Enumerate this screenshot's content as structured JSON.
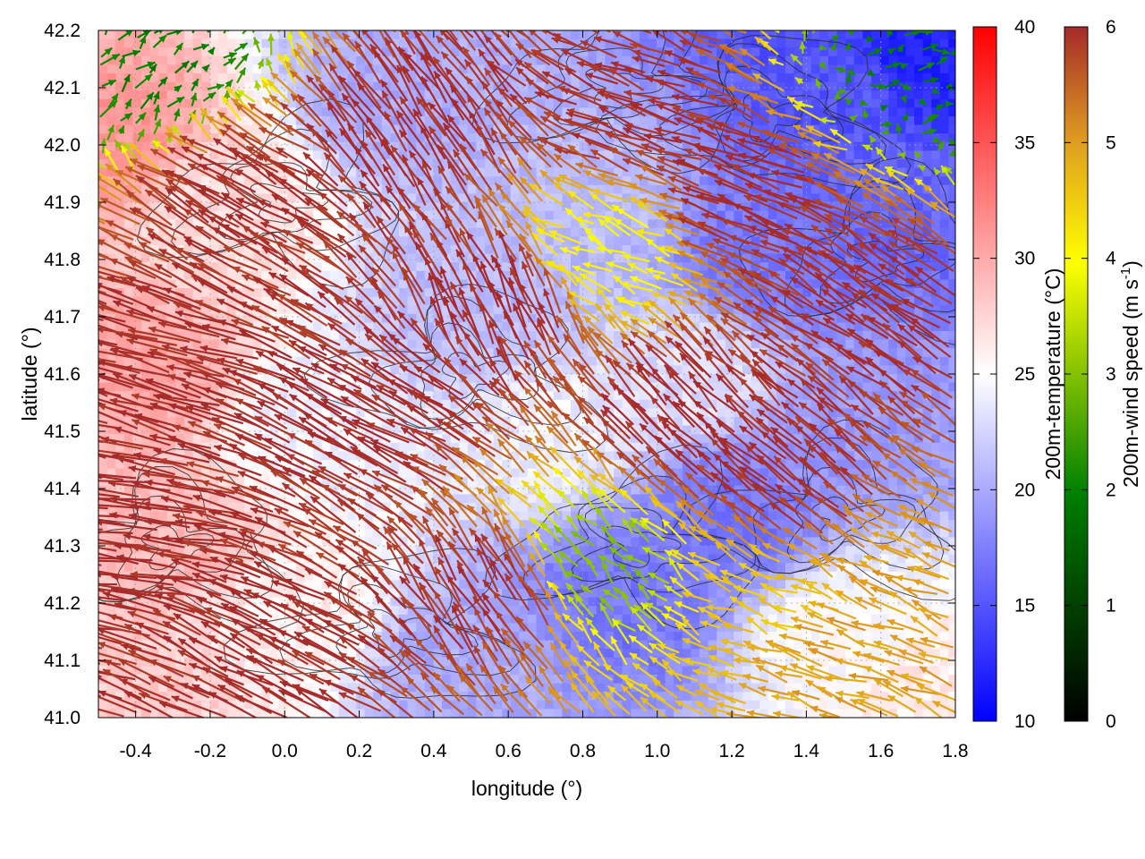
{
  "chart_data": {
    "type": "heatmap",
    "title": "",
    "xlabel": "longitude (°)",
    "ylabel": "latitude (°)",
    "xlim": [
      -0.5,
      1.8
    ],
    "ylim": [
      41.0,
      42.2
    ],
    "x_ticks": [
      "-0.4",
      "-0.2",
      "0.0",
      "0.2",
      "0.4",
      "0.6",
      "0.8",
      "1.0",
      "1.2",
      "1.4",
      "1.6",
      "1.8"
    ],
    "y_ticks": [
      "41.0",
      "41.1",
      "41.2",
      "41.3",
      "41.4",
      "41.5",
      "41.6",
      "41.7",
      "41.8",
      "41.9",
      "42.0",
      "42.1",
      "42.2"
    ],
    "grid": true,
    "overlays": [
      "200m wind vectors (arrows colored by wind speed)",
      "terrain contour lines"
    ],
    "colorbars": [
      {
        "label": "200m-temperature (°C)",
        "range": [
          10,
          40
        ],
        "ticks": [
          "10",
          "15",
          "20",
          "25",
          "30",
          "35",
          "40"
        ],
        "colors": [
          "#0000ff",
          "#ffffff",
          "#ff0000"
        ]
      },
      {
        "label_main": "200m-wind speed (m s",
        "label_sup": "-1",
        "label_end": ")",
        "range": [
          0,
          6
        ],
        "ticks": [
          "0",
          "1",
          "2",
          "3",
          "4",
          "5",
          "6"
        ],
        "colors": [
          "#000000",
          "#008000",
          "#ffff00",
          "#e0a020",
          "#a52a2a"
        ]
      }
    ],
    "temperature_regions": [
      {
        "lon": -0.45,
        "lat": 41.05,
        "temp": 28
      },
      {
        "lon": -0.3,
        "lat": 41.3,
        "temp": 29
      },
      {
        "lon": -0.4,
        "lat": 41.6,
        "temp": 30
      },
      {
        "lon": -0.45,
        "lat": 42.0,
        "temp": 31
      },
      {
        "lon": -0.2,
        "lat": 41.9,
        "temp": 27
      },
      {
        "lon": 0.0,
        "lat": 41.2,
        "temp": 26
      },
      {
        "lon": 0.1,
        "lat": 41.5,
        "temp": 24
      },
      {
        "lon": 0.3,
        "lat": 42.1,
        "temp": 20
      },
      {
        "lon": 0.5,
        "lat": 41.7,
        "temp": 21
      },
      {
        "lon": 0.5,
        "lat": 41.1,
        "temp": 20
      },
      {
        "lon": 0.7,
        "lat": 41.5,
        "temp": 24
      },
      {
        "lon": 0.8,
        "lat": 41.9,
        "temp": 21
      },
      {
        "lon": 0.9,
        "lat": 41.2,
        "temp": 17
      },
      {
        "lon": 1.1,
        "lat": 41.6,
        "temp": 23
      },
      {
        "lon": 1.2,
        "lat": 41.35,
        "temp": 17
      },
      {
        "lon": 1.3,
        "lat": 41.8,
        "temp": 17
      },
      {
        "lon": 1.5,
        "lat": 41.5,
        "temp": 19
      },
      {
        "lon": 1.6,
        "lat": 41.9,
        "temp": 16
      },
      {
        "lon": 1.7,
        "lat": 42.15,
        "temp": 12
      },
      {
        "lon": 1.5,
        "lat": 42.1,
        "temp": 15
      },
      {
        "lon": 1.5,
        "lat": 41.15,
        "temp": 25
      },
      {
        "lon": 1.75,
        "lat": 41.05,
        "temp": 26
      }
    ],
    "wind_regions": [
      {
        "lon": -0.4,
        "lat": 41.3,
        "u": -6.5,
        "v": 0.8,
        "speed": 6
      },
      {
        "lon": -0.3,
        "lat": 41.6,
        "u": -6.0,
        "v": 1.8,
        "speed": 6
      },
      {
        "lon": -0.1,
        "lat": 41.9,
        "u": -5.0,
        "v": 2.8,
        "speed": 6
      },
      {
        "lon": -0.35,
        "lat": 42.12,
        "u": 1.2,
        "v": 1.0,
        "speed": 2
      },
      {
        "lon": 0.0,
        "lat": 41.1,
        "u": -5.0,
        "v": 2.5,
        "speed": 6
      },
      {
        "lon": 0.3,
        "lat": 41.5,
        "u": -5.5,
        "v": 3.0,
        "speed": 6
      },
      {
        "lon": 0.4,
        "lat": 42.0,
        "u": -3.0,
        "v": 4.5,
        "speed": 6
      },
      {
        "lon": 0.6,
        "lat": 41.7,
        "u": -2.0,
        "v": 4.5,
        "speed": 6
      },
      {
        "lon": 0.6,
        "lat": 41.2,
        "u": -2.5,
        "v": 4.0,
        "speed": 6
      },
      {
        "lon": 0.85,
        "lat": 41.25,
        "u": -1.5,
        "v": 1.5,
        "speed": 3
      },
      {
        "lon": 0.9,
        "lat": 41.8,
        "u": -2.5,
        "v": 1.2,
        "speed": 4
      },
      {
        "lon": 1.0,
        "lat": 42.05,
        "u": -4.0,
        "v": 1.5,
        "speed": 6
      },
      {
        "lon": 1.1,
        "lat": 41.5,
        "u": -3.5,
        "v": 3.5,
        "speed": 6
      },
      {
        "lon": 1.3,
        "lat": 41.9,
        "u": -5.0,
        "v": 2.0,
        "speed": 6
      },
      {
        "lon": 1.4,
        "lat": 41.4,
        "u": -4.0,
        "v": 3.5,
        "speed": 6
      },
      {
        "lon": 1.6,
        "lat": 41.7,
        "u": -4.5,
        "v": 3.0,
        "speed": 6
      },
      {
        "lon": 1.5,
        "lat": 41.12,
        "u": -3.5,
        "v": 1.2,
        "speed": 5
      },
      {
        "lon": 1.35,
        "lat": 41.2,
        "u": -2.5,
        "v": 1.0,
        "speed": 4.6
      },
      {
        "lon": 1.7,
        "lat": 41.25,
        "u": -3.0,
        "v": 1.3,
        "speed": 5
      },
      {
        "lon": 1.7,
        "lat": 42.12,
        "u": 1.0,
        "v": 0.2,
        "speed": 2
      }
    ]
  }
}
